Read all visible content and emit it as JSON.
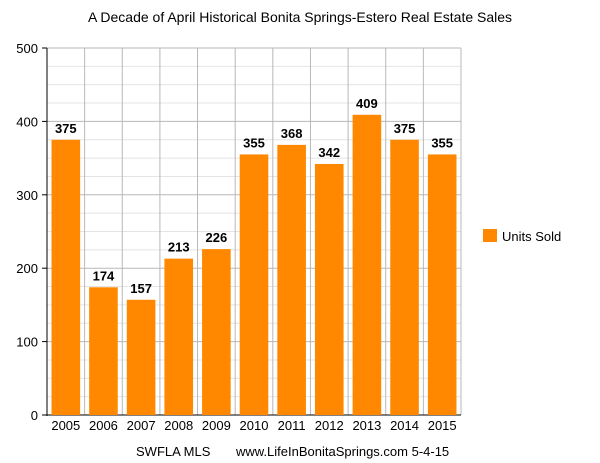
{
  "chart_data": {
    "type": "bar",
    "title": "A Decade of April Historical Bonita Springs-Estero Real Estate Sales",
    "categories": [
      "2005",
      "2006",
      "2007",
      "2008",
      "2009",
      "2010",
      "2011",
      "2012",
      "2013",
      "2014",
      "2015"
    ],
    "series": [
      {
        "name": "Units Sold",
        "values": [
          375,
          174,
          157,
          213,
          226,
          355,
          368,
          342,
          409,
          375,
          355
        ],
        "color": "#ff8800"
      }
    ],
    "ylim": [
      0,
      500
    ],
    "yticks": [
      0,
      100,
      200,
      300,
      400,
      500
    ],
    "grid": true,
    "legend_position": "right",
    "footer": {
      "source": "SWFLA MLS",
      "site_date": "www.LifeInBonitaSprings.com 5-4-15"
    }
  }
}
